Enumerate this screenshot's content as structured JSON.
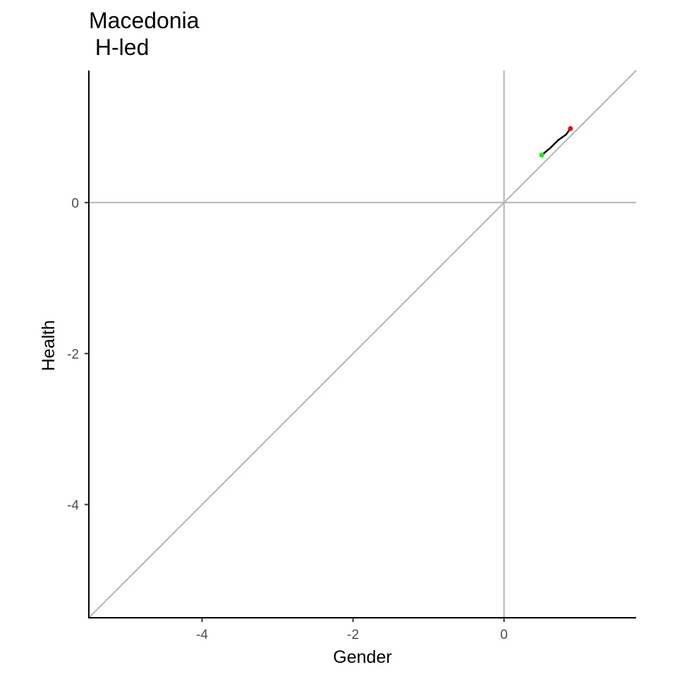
{
  "chart_data": {
    "type": "line",
    "title": "Macedonia",
    "subtitle": " H-led",
    "xlabel": "Gender",
    "ylabel": "Health",
    "xlim": [
      -5.5,
      1.75
    ],
    "ylim": [
      -5.5,
      1.75
    ],
    "xticks": [
      -4,
      -2,
      0
    ],
    "yticks": [
      -4,
      -2,
      0
    ],
    "grid": false,
    "reference_lines": [
      {
        "kind": "vertical",
        "value": 0
      },
      {
        "kind": "horizontal",
        "value": 0
      },
      {
        "kind": "diagonal",
        "from": [
          -5.5,
          -5.5
        ],
        "to": [
          1.75,
          1.75
        ]
      }
    ],
    "series": [
      {
        "x": [
          0.5,
          0.62,
          0.72,
          0.82,
          0.88
        ],
        "y": [
          0.63,
          0.73,
          0.83,
          0.9,
          0.98
        ],
        "start_color": "#00ff00",
        "end_color": "#ff0000"
      }
    ],
    "colors": {
      "path": "#000000",
      "reference": "#b3b3b3",
      "axis": "#000000",
      "start_point": "#00ff00",
      "end_point": "#ff0000"
    }
  }
}
